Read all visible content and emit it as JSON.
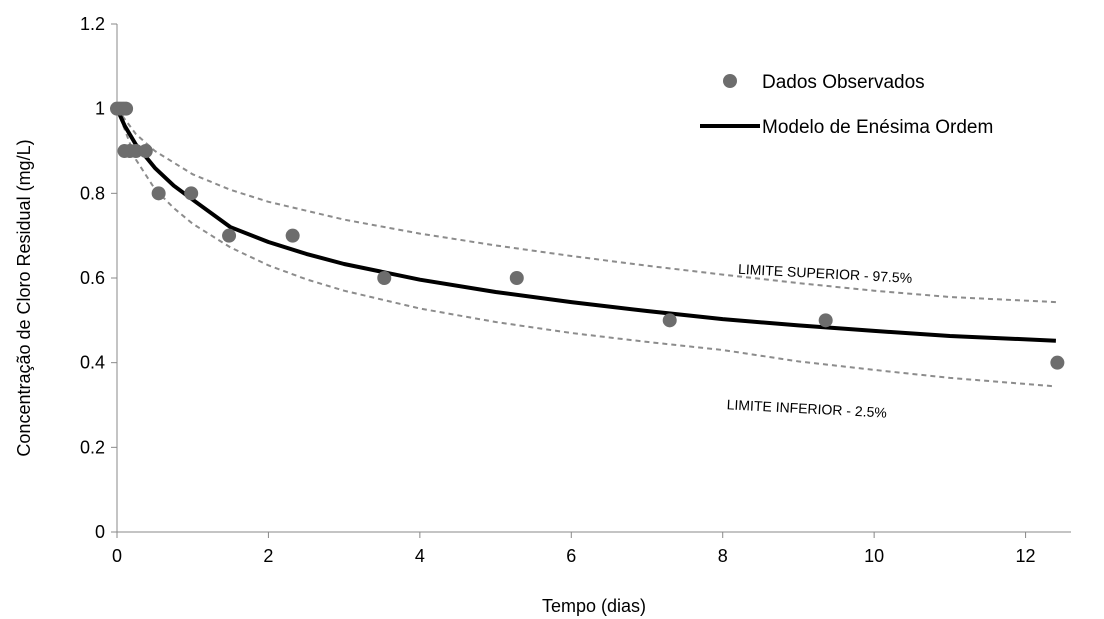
{
  "chart_data": {
    "type": "scatter",
    "xlabel": "Tempo (dias)",
    "ylabel": "Concentração de Cloro Residual (mg/L)",
    "xlim": [
      0,
      12.6
    ],
    "ylim": [
      0,
      1.2
    ],
    "xticks": [
      0,
      2,
      4,
      6,
      8,
      10,
      12
    ],
    "yticks": [
      0,
      0.2,
      0.4,
      0.6,
      0.8,
      1,
      1.2
    ],
    "xtick_labels": [
      "0",
      "2",
      "4",
      "6",
      "8",
      "10",
      "12"
    ],
    "ytick_labels": [
      "0",
      "0.2",
      "0.4",
      "0.6",
      "0.8",
      "1",
      "1.2"
    ],
    "grid": false,
    "legend_position": "top-right",
    "series": [
      {
        "name": "Dados Observados",
        "kind": "scatter",
        "color": "#6d6d6d",
        "points": [
          {
            "x": 0.0,
            "y": 1.0
          },
          {
            "x": 0.04,
            "y": 1.0
          },
          {
            "x": 0.08,
            "y": 1.0
          },
          {
            "x": 0.12,
            "y": 1.0
          },
          {
            "x": 0.1,
            "y": 0.9
          },
          {
            "x": 0.17,
            "y": 0.9
          },
          {
            "x": 0.25,
            "y": 0.9
          },
          {
            "x": 0.38,
            "y": 0.9
          },
          {
            "x": 0.55,
            "y": 0.8
          },
          {
            "x": 0.98,
            "y": 0.8
          },
          {
            "x": 1.48,
            "y": 0.7
          },
          {
            "x": 2.32,
            "y": 0.7
          },
          {
            "x": 3.53,
            "y": 0.6
          },
          {
            "x": 5.28,
            "y": 0.6
          },
          {
            "x": 7.3,
            "y": 0.5
          },
          {
            "x": 9.36,
            "y": 0.5
          },
          {
            "x": 12.42,
            "y": 0.4
          }
        ]
      },
      {
        "name": "Modelo de Enésima Ordem",
        "kind": "line",
        "color": "#000000",
        "points": [
          {
            "x": 0.0,
            "y": 1.0
          },
          {
            "x": 0.1,
            "y": 0.96
          },
          {
            "x": 0.25,
            "y": 0.915
          },
          {
            "x": 0.5,
            "y": 0.86
          },
          {
            "x": 0.75,
            "y": 0.818
          },
          {
            "x": 1.0,
            "y": 0.785
          },
          {
            "x": 1.5,
            "y": 0.72
          },
          {
            "x": 2.0,
            "y": 0.685
          },
          {
            "x": 2.5,
            "y": 0.657
          },
          {
            "x": 3.0,
            "y": 0.633
          },
          {
            "x": 4.0,
            "y": 0.596
          },
          {
            "x": 5.0,
            "y": 0.567
          },
          {
            "x": 6.0,
            "y": 0.543
          },
          {
            "x": 7.0,
            "y": 0.522
          },
          {
            "x": 8.0,
            "y": 0.503
          },
          {
            "x": 9.0,
            "y": 0.488
          },
          {
            "x": 10.0,
            "y": 0.475
          },
          {
            "x": 11.0,
            "y": 0.463
          },
          {
            "x": 12.4,
            "y": 0.452
          }
        ]
      },
      {
        "name": "LIMITE SUPERIOR - 97.5%",
        "kind": "dashed-line",
        "color": "#8c8c8c",
        "points": [
          {
            "x": 0.0,
            "y": 1.0
          },
          {
            "x": 0.25,
            "y": 0.94
          },
          {
            "x": 0.5,
            "y": 0.9
          },
          {
            "x": 1.0,
            "y": 0.845
          },
          {
            "x": 1.5,
            "y": 0.808
          },
          {
            "x": 2.0,
            "y": 0.78
          },
          {
            "x": 3.0,
            "y": 0.738
          },
          {
            "x": 4.0,
            "y": 0.705
          },
          {
            "x": 5.0,
            "y": 0.677
          },
          {
            "x": 6.0,
            "y": 0.652
          },
          {
            "x": 7.0,
            "y": 0.629
          },
          {
            "x": 8.0,
            "y": 0.608
          },
          {
            "x": 9.0,
            "y": 0.588
          },
          {
            "x": 10.0,
            "y": 0.57
          },
          {
            "x": 11.0,
            "y": 0.555
          },
          {
            "x": 12.4,
            "y": 0.543
          }
        ]
      },
      {
        "name": "LIMITE INFERIOR - 2.5%",
        "kind": "dashed-line",
        "color": "#8c8c8c",
        "points": [
          {
            "x": 0.0,
            "y": 1.0
          },
          {
            "x": 0.25,
            "y": 0.88
          },
          {
            "x": 0.5,
            "y": 0.81
          },
          {
            "x": 0.75,
            "y": 0.765
          },
          {
            "x": 1.0,
            "y": 0.728
          },
          {
            "x": 1.5,
            "y": 0.672
          },
          {
            "x": 2.0,
            "y": 0.63
          },
          {
            "x": 2.5,
            "y": 0.597
          },
          {
            "x": 3.0,
            "y": 0.57
          },
          {
            "x": 4.0,
            "y": 0.528
          },
          {
            "x": 5.0,
            "y": 0.496
          },
          {
            "x": 6.0,
            "y": 0.47
          },
          {
            "x": 7.0,
            "y": 0.449
          },
          {
            "x": 8.0,
            "y": 0.43
          },
          {
            "x": 9.0,
            "y": 0.403
          },
          {
            "x": 10.0,
            "y": 0.383
          },
          {
            "x": 11.0,
            "y": 0.364
          },
          {
            "x": 12.4,
            "y": 0.344
          }
        ]
      }
    ],
    "legend": [
      {
        "label": "Dados Observados",
        "kind": "marker"
      },
      {
        "label": "Modelo de Enésima Ordem",
        "kind": "line"
      }
    ],
    "annotations": [
      {
        "text": "LIMITE SUPERIOR - 97.5%",
        "x": 8.2,
        "y": 0.61,
        "rotate": 3
      },
      {
        "text": "LIMITE INFERIOR - 2.5%",
        "x": 8.05,
        "y": 0.29,
        "rotate": 3
      }
    ]
  }
}
